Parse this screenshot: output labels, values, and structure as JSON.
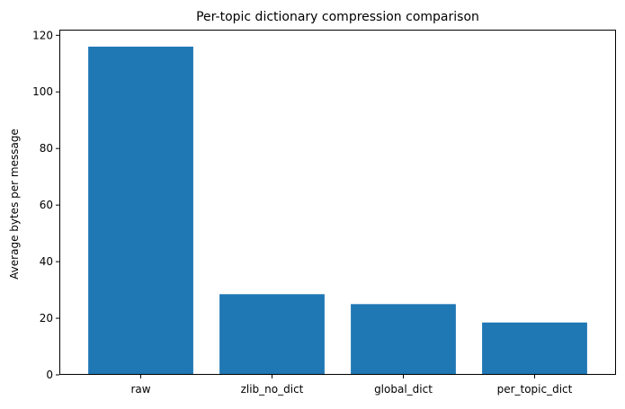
{
  "chart_data": {
    "type": "bar",
    "title": "Per-topic dictionary compression comparison",
    "xlabel": "",
    "ylabel": "Average bytes per message",
    "categories": [
      "raw",
      "zlib_no_dict",
      "global_dict",
      "per_topic_dict"
    ],
    "values": [
      116,
      28.5,
      25,
      18.5
    ],
    "ylim": [
      0,
      122
    ],
    "yticks": [
      0,
      20,
      40,
      60,
      80,
      100,
      120
    ],
    "grid": false,
    "bar_color": "#1f77b4"
  }
}
